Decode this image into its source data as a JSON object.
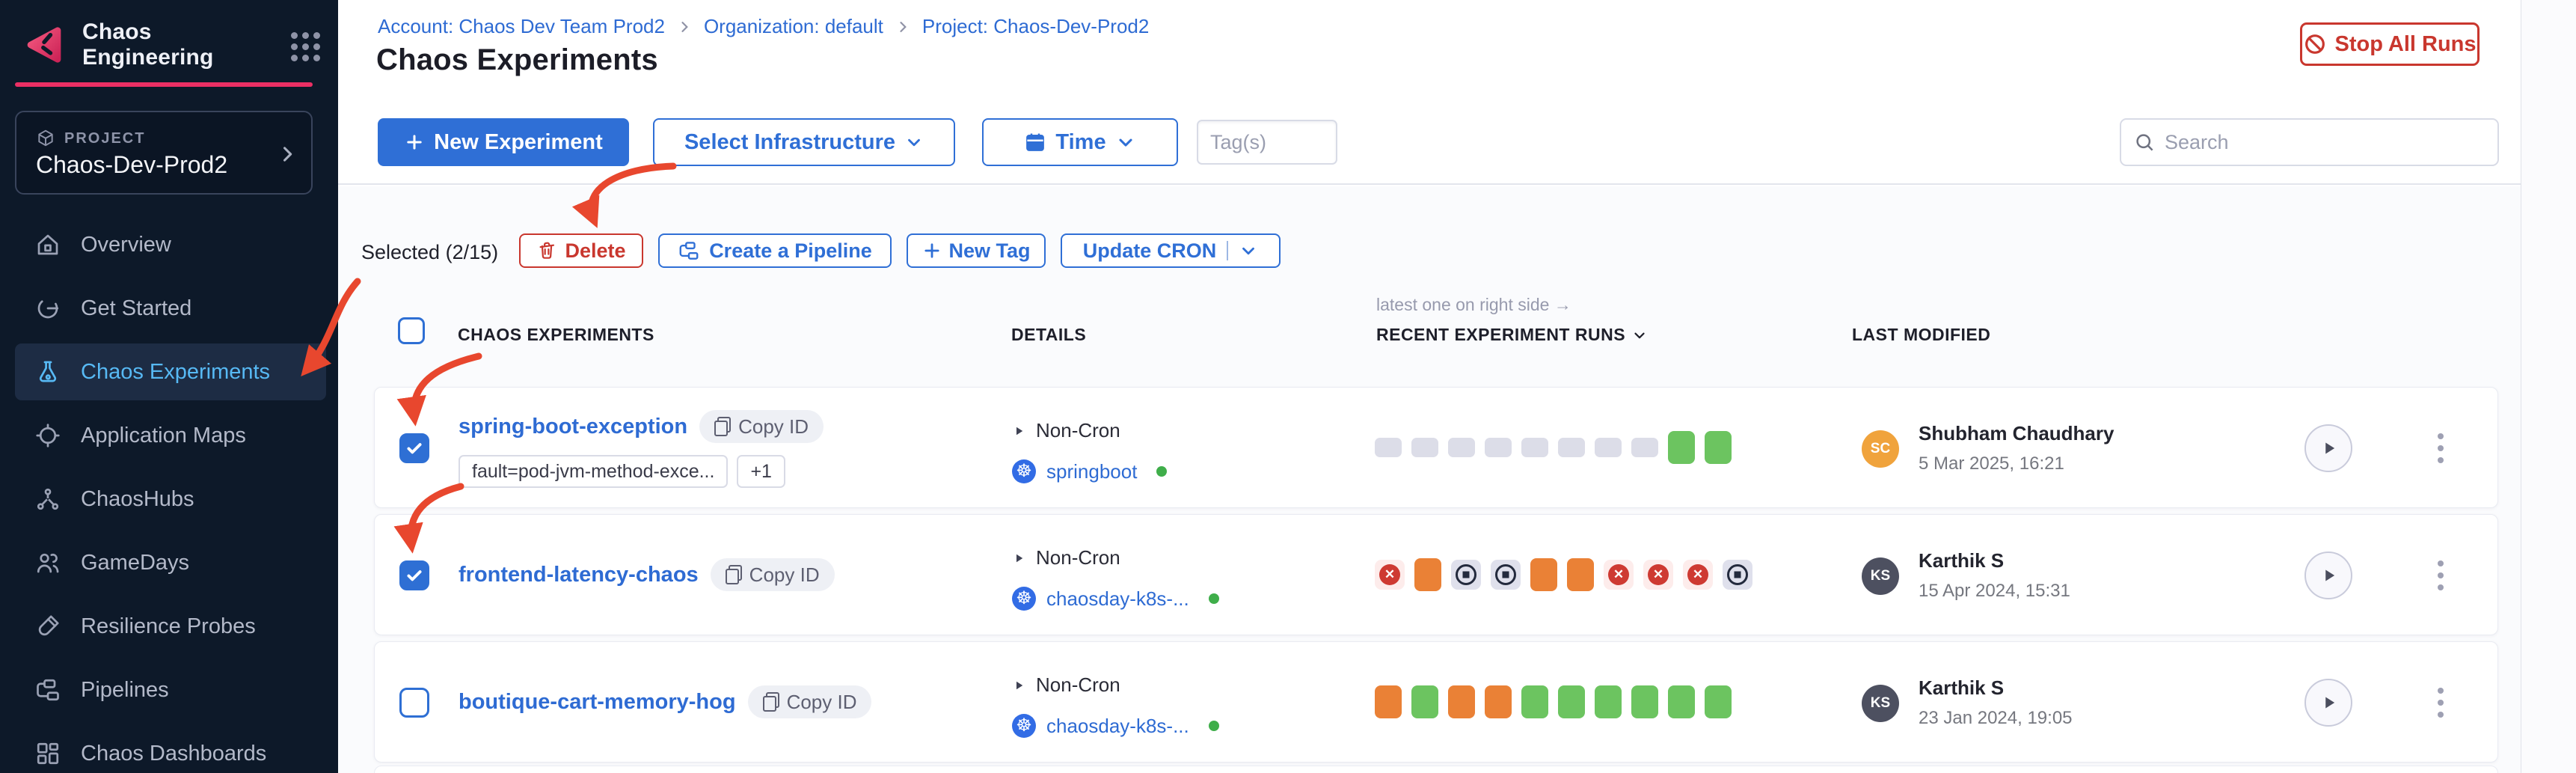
{
  "brand": {
    "name": "Chaos Engineering"
  },
  "project": {
    "label": "PROJECT",
    "name": "Chaos-Dev-Prod2"
  },
  "nav": {
    "items": [
      {
        "label": "Overview",
        "active": false
      },
      {
        "label": "Get Started",
        "active": false
      },
      {
        "label": "Chaos Experiments",
        "active": true
      },
      {
        "label": "Application Maps",
        "active": false
      },
      {
        "label": "ChaosHubs",
        "active": false
      },
      {
        "label": "GameDays",
        "active": false
      },
      {
        "label": "Resilience Probes",
        "active": false
      },
      {
        "label": "Pipelines",
        "active": false
      },
      {
        "label": "Chaos Dashboards",
        "active": false
      }
    ]
  },
  "breadcrumb": {
    "items": [
      "Account: Chaos Dev Team Prod2",
      "Organization: default",
      "Project: Chaos-Dev-Prod2"
    ]
  },
  "page": {
    "title": "Chaos Experiments",
    "stop_all_runs": "Stop All Runs"
  },
  "toolbar": {
    "new_experiment": "New Experiment",
    "select_infrastructure": "Select Infrastructure",
    "time": "Time",
    "tags_placeholder": "Tag(s)",
    "search_placeholder": "Search"
  },
  "selection": {
    "label": "Selected (2/15)",
    "delete": "Delete",
    "create_pipeline": "Create a Pipeline",
    "new_tag": "New Tag",
    "update_cron": "Update CRON"
  },
  "table": {
    "note": "latest one on right side →",
    "col_experiments": "CHAOS EXPERIMENTS",
    "col_details": "DETAILS",
    "col_runs": "RECENT EXPERIMENT RUNS",
    "col_modified": "LAST MODIFIED"
  },
  "rows": [
    {
      "checked": true,
      "name": "spring-boot-exception",
      "copy_label": "Copy ID",
      "tags": [
        "fault=pod-jvm-method-exce...",
        "+1"
      ],
      "schedule": "Non-Cron",
      "infra": "springboot",
      "infra_status": "active",
      "runs": [
        "empty",
        "empty",
        "empty",
        "empty",
        "empty",
        "empty",
        "empty",
        "empty",
        "passed",
        "passed"
      ],
      "avatar": {
        "initials": "SC",
        "color": "#f0a33c"
      },
      "modified_by": "Shubham Chaudhary",
      "modified_at": "5 Mar 2025, 16:21"
    },
    {
      "checked": true,
      "name": "frontend-latency-chaos",
      "copy_label": "Copy ID",
      "tags": [],
      "schedule": "Non-Cron",
      "infra": "chaosday-k8s-...",
      "infra_status": "active",
      "runs": [
        "failed",
        "orange",
        "stopped",
        "stopped",
        "orange",
        "orange",
        "failed",
        "failed",
        "failed",
        "stopped"
      ],
      "avatar": {
        "initials": "KS",
        "color": "#4d5060"
      },
      "modified_by": "Karthik S",
      "modified_at": "15 Apr 2024, 15:31"
    },
    {
      "checked": false,
      "name": "boutique-cart-memory-hog",
      "copy_label": "Copy ID",
      "tags": [],
      "schedule": "Non-Cron",
      "infra": "chaosday-k8s-...",
      "infra_status": "active",
      "runs": [
        "orange",
        "passed",
        "orange",
        "orange",
        "passed",
        "passed",
        "passed",
        "passed",
        "passed",
        "passed"
      ],
      "avatar": {
        "initials": "KS",
        "color": "#4d5060"
      },
      "modified_by": "Karthik S",
      "modified_at": "23 Jan 2024, 19:05"
    }
  ],
  "colors": {
    "accent_blue": "#2f6fd6",
    "link_blue": "#2e6bd3",
    "danger_red": "#c9372e",
    "annotation_red": "#e8472e",
    "sidebar_active_blue": "#57b9f4",
    "brand_pink": "#eb2f64",
    "status_dot_green": "#3fae4a",
    "run_colors": {
      "passed": "#6cc460",
      "orange": "#ea8136",
      "failed": "#ce3a32",
      "empty": "#dcdde8"
    }
  }
}
